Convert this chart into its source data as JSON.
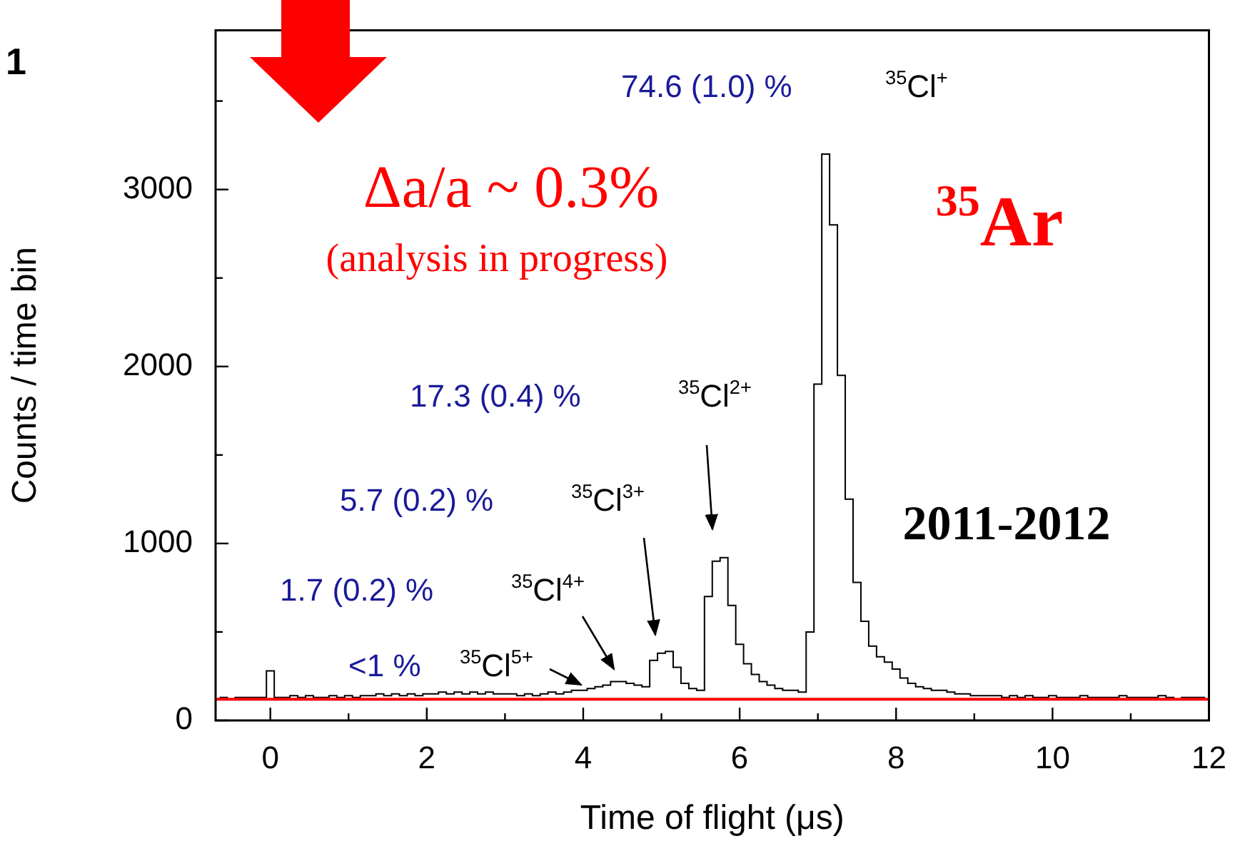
{
  "chart_data": {
    "type": "histogram",
    "xlabel": "Time of flight (μs)",
    "ylabel": "Counts / time bin",
    "bins": [
      -0.65,
      -0.55,
      -0.45,
      -0.35,
      -0.25,
      -0.15,
      -0.05,
      0.05,
      0.15,
      0.25,
      0.35,
      0.45,
      0.55,
      0.65,
      0.75,
      0.85,
      0.95,
      1.05,
      1.15,
      1.25,
      1.35,
      1.45,
      1.55,
      1.65,
      1.75,
      1.85,
      1.95,
      2.05,
      2.15,
      2.25,
      2.35,
      2.45,
      2.55,
      2.65,
      2.75,
      2.85,
      2.95,
      3.05,
      3.15,
      3.25,
      3.35,
      3.45,
      3.55,
      3.65,
      3.75,
      3.85,
      3.95,
      4.05,
      4.15,
      4.25,
      4.35,
      4.45,
      4.55,
      4.65,
      4.75,
      4.85,
      4.95,
      5.05,
      5.15,
      5.25,
      5.35,
      5.45,
      5.55,
      5.65,
      5.75,
      5.85,
      5.95,
      6.05,
      6.15,
      6.25,
      6.35,
      6.45,
      6.55,
      6.65,
      6.75,
      6.85,
      6.95,
      7.05,
      7.15,
      7.25,
      7.35,
      7.45,
      7.55,
      7.65,
      7.75,
      7.85,
      7.95,
      8.05,
      8.15,
      8.25,
      8.35,
      8.45,
      8.55,
      8.65,
      8.75,
      8.85,
      8.95,
      9.05,
      9.15,
      9.25,
      9.35,
      9.45,
      9.55,
      9.65,
      9.75,
      9.85,
      9.95,
      10.05,
      10.15,
      10.25,
      10.35,
      10.45,
      10.55,
      10.65,
      10.75,
      10.85,
      10.95,
      11.05,
      11.15,
      11.25,
      11.35,
      11.45,
      11.55,
      11.65,
      11.75,
      11.85,
      11.95
    ],
    "values": [
      130,
      120,
      130,
      130,
      130,
      130,
      280,
      130,
      130,
      140,
      130,
      140,
      130,
      130,
      140,
      130,
      140,
      130,
      140,
      140,
      150,
      140,
      150,
      140,
      150,
      140,
      150,
      150,
      160,
      150,
      160,
      150,
      160,
      150,
      160,
      150,
      150,
      150,
      140,
      150,
      140,
      150,
      160,
      150,
      160,
      170,
      170,
      180,
      190,
      200,
      220,
      220,
      210,
      200,
      190,
      340,
      380,
      390,
      300,
      210,
      180,
      170,
      700,
      900,
      920,
      650,
      430,
      320,
      260,
      220,
      200,
      180,
      170,
      170,
      160,
      500,
      1900,
      3200,
      2800,
      1950,
      1250,
      780,
      560,
      420,
      360,
      330,
      290,
      240,
      210,
      190,
      180,
      170,
      170,
      160,
      150,
      150,
      140,
      140,
      140,
      140,
      130,
      140,
      130,
      140,
      130,
      130,
      140,
      130,
      130,
      130,
      140,
      130,
      130,
      130,
      130,
      140,
      130,
      130,
      130,
      130,
      140,
      130,
      120,
      130,
      130,
      130
    ],
    "color": "#000000",
    "xlim": [
      -0.7,
      12
    ],
    "xticks": [
      0,
      {
        "value": 1,
        "label": null
      },
      2,
      {
        "value": 3,
        "label": null
      },
      4,
      {
        "value": 5,
        "label": null
      },
      6,
      {
        "value": 7,
        "label": null
      },
      8,
      {
        "value": 9,
        "label": null
      },
      10,
      {
        "value": 11,
        "label": null
      },
      12
    ],
    "ylim": [
      0,
      3900
    ],
    "yticks": [
      0,
      {
        "value": 500,
        "label": null
      },
      1000,
      {
        "value": 1500,
        "label": null
      },
      2000,
      {
        "value": 2500,
        "label": null
      },
      3000,
      {
        "value": 3500,
        "label": null
      }
    ],
    "ref_lines": [
      {
        "axis": "y",
        "value": 120,
        "color": "#ff0000"
      }
    ],
    "annotations": [
      "1",
      "Δa/a ~ 0.3%",
      "(analysis in progress)",
      "$^{35}$Ar",
      "2011-2012",
      "74.6 (1.0) %",
      "$^{35}$Cl$^{+}$",
      "17.3 (0.4) %",
      "$^{35}$Cl$^{2+}$",
      "5.7 (0.2) %",
      "$^{35}$Cl$^{3+}$",
      "1.7 (0.2) %",
      "$^{35}$Cl$^{4+}$",
      "<1 %",
      "$^{35}$Cl$^{5+}$"
    ]
  }
}
